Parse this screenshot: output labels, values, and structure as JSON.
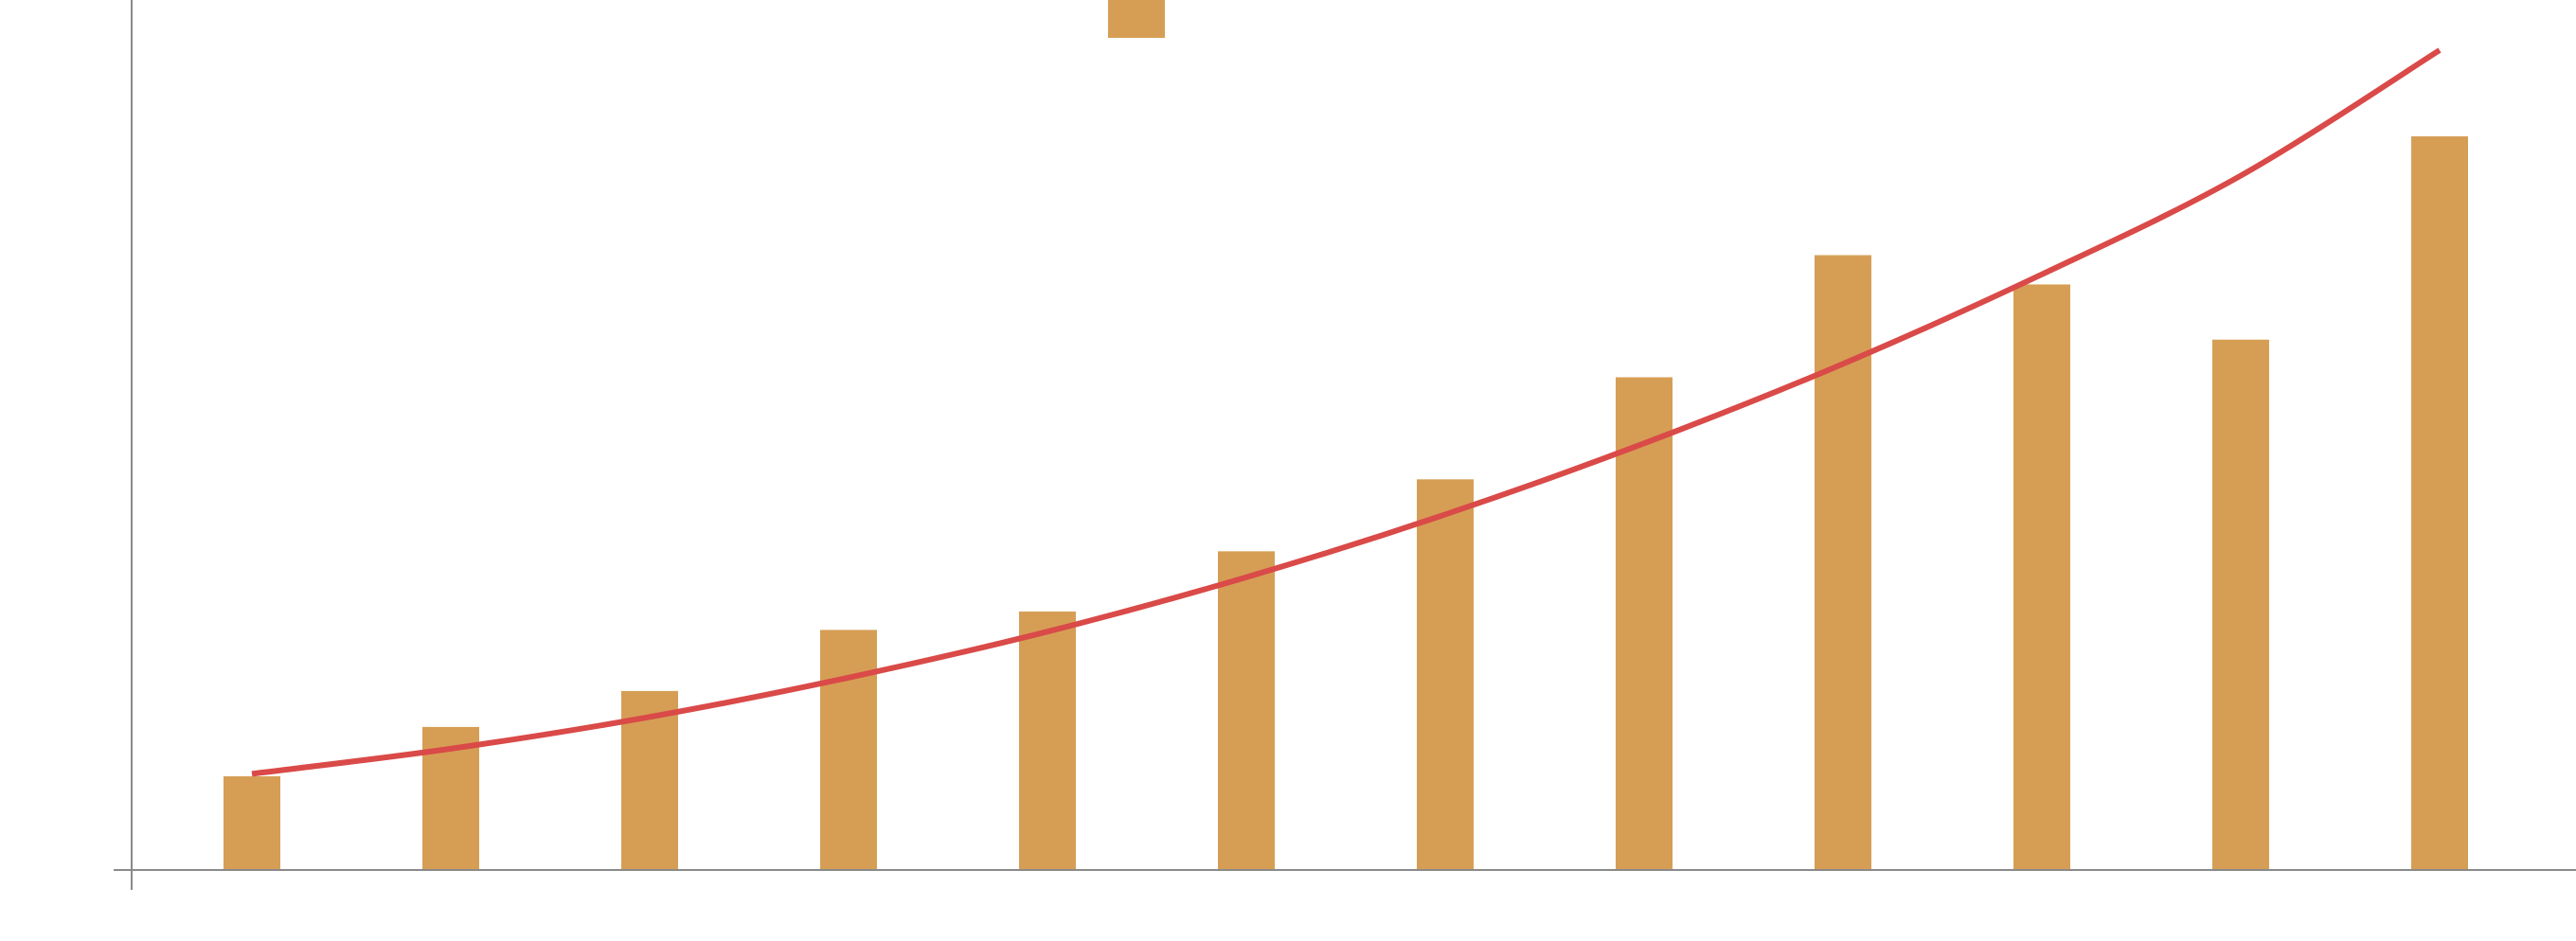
{
  "chart_data": {
    "type": "bar",
    "categories": [
      "",
      "",
      "",
      "",
      "",
      "",
      "",
      "",
      "",
      "",
      "",
      ""
    ],
    "series": [
      {
        "name": "",
        "type": "bar",
        "color": "#D69E55",
        "values": [
          1.12,
          1.71,
          2.14,
          2.87,
          3.09,
          3.81,
          4.67,
          5.89,
          7.35,
          7.0,
          6.34,
          8.77
        ]
      },
      {
        "name": "",
        "type": "line",
        "color": "#D94A48",
        "values": [
          1.15,
          1.45,
          1.83,
          2.3,
          2.85,
          3.5,
          4.25,
          5.1,
          6.05,
          7.12,
          8.3,
          9.8
        ]
      }
    ],
    "ylim": [
      0,
      10.4
    ],
    "yticks": [],
    "title": "",
    "xlabel": "",
    "ylabel": "",
    "grid": false,
    "legend": "top-center"
  }
}
